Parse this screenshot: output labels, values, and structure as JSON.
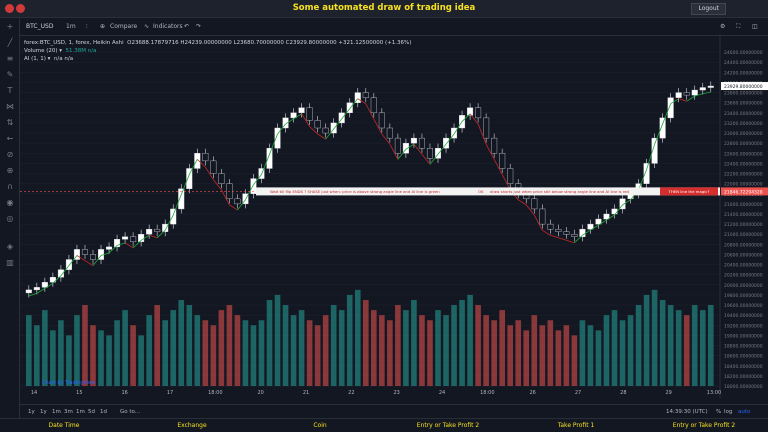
{
  "app": {
    "title": "Some automated draw of trading idea",
    "logout_label": "Logout"
  },
  "toolbar": {
    "symbol": "BTC_USD",
    "interval": "1m",
    "compare_label": "Compare",
    "indicators_label": "Indicators"
  },
  "legend": {
    "main": "forex:BTC_USD, 1, forex, Heikin Ashi",
    "ohlc": "O23688.17879716  H24239.00000000  L23680.70000000  C23929.80000000  +321.12500000 (+1.36%)",
    "volume": "Volume (20) ▾",
    "volume_value": "51.38M  n/a",
    "ai": "AI (1, 1) ▾",
    "ai_value": "n/a  n/a"
  },
  "annotations": {
    "wait_text": "Wait till flip ENDS ?  SHASE just when: price is above strong angle line and AI line is green",
    "ok_text": "OK",
    "draw_text": "draw shorts just when price still below strong angle line and AI line is red",
    "then_text": "THEN line the magic?",
    "price_tag": "21846.72294328",
    "current_tag": "23929.80000000"
  },
  "x_ticks": [
    "14",
    "15",
    "16",
    "17",
    "18:00",
    "20",
    "21",
    "22",
    "23",
    "24",
    "18:00",
    "26",
    "27",
    "28",
    "29",
    "13:00"
  ],
  "bottom": {
    "ranges": [
      "1y",
      "1y",
      "1m",
      "3m",
      "1m",
      "5d",
      "1d"
    ],
    "goto_label": "Go to...",
    "time": "14:39:30 (UTC)",
    "pct": "%",
    "log": "log",
    "auto": "auto"
  },
  "watermark": "Chart by TradingView",
  "footer": [
    "Date Time",
    "Exchange",
    "Coin",
    "Entry or Take Profit 2",
    "Take Profit 1",
    "Entry or Take Profit 2"
  ],
  "colors": {
    "up": "#26a69a",
    "down": "#ef5350",
    "accent": "#f7e21f",
    "bg": "#131722"
  },
  "chart_data": {
    "type": "candlestick",
    "title": "forex:BTC_USD, 1, forex, Heikin Ashi",
    "ylim": [
      18000,
      24800
    ],
    "y_ticks": [
      24600,
      24400,
      24200,
      24000,
      23800,
      23600,
      23400,
      23200,
      23000,
      22800,
      22600,
      22400,
      22200,
      22000,
      21800,
      21600,
      21400,
      21200,
      21000,
      20800,
      20600,
      20400,
      20200,
      20000,
      19800,
      19600,
      19400,
      19200,
      19000,
      18800,
      18600,
      18400,
      18200,
      18000
    ],
    "close": [
      19900,
      19950,
      20050,
      20150,
      20300,
      20500,
      20700,
      20600,
      20500,
      20700,
      20750,
      20900,
      20950,
      20850,
      21000,
      21100,
      21050,
      21200,
      21500,
      21900,
      22300,
      22600,
      22450,
      22200,
      22000,
      21700,
      21600,
      21800,
      22100,
      22300,
      22700,
      23100,
      23300,
      23400,
      23500,
      23250,
      23100,
      23000,
      23200,
      23400,
      23600,
      23800,
      23700,
      23400,
      23100,
      22900,
      22600,
      22800,
      22900,
      22700,
      22500,
      22700,
      22900,
      23100,
      23350,
      23500,
      23300,
      22900,
      22600,
      22300,
      22000,
      21800,
      21700,
      21500,
      21200,
      21100,
      21050,
      21000,
      20950,
      21100,
      21200,
      21300,
      21400,
      21500,
      21700,
      21800,
      22000,
      22400,
      22900,
      23300,
      23700,
      23800,
      23750,
      23850,
      23900,
      23929.8
    ],
    "volume": [
      19400,
      19200,
      19500,
      19100,
      19300,
      19000,
      19400,
      19600,
      19200,
      19100,
      19000,
      19300,
      19500,
      19200,
      19000,
      19400,
      19600,
      19300,
      19500,
      19700,
      19600,
      19400,
      19300,
      19200,
      19500,
      19600,
      19400,
      19300,
      19200,
      19300,
      19700,
      19800,
      19600,
      19400,
      19500,
      19300,
      19200,
      19400,
      19600,
      19500,
      19800,
      19900,
      19700,
      19500,
      19400,
      19300,
      19600,
      19500,
      19700,
      19400,
      19300,
      19500,
      19400,
      19600,
      19700,
      19800,
      19600,
      19400,
      19300,
      19500,
      19200,
      19300,
      19100,
      19400,
      19200,
      19300,
      19100,
      19200,
      19000,
      19300,
      19200,
      19100,
      19400,
      19500,
      19300,
      19400,
      19600,
      19800,
      19900,
      19700,
      19600,
      19500,
      19400,
      19600,
      19500,
      19600
    ]
  }
}
